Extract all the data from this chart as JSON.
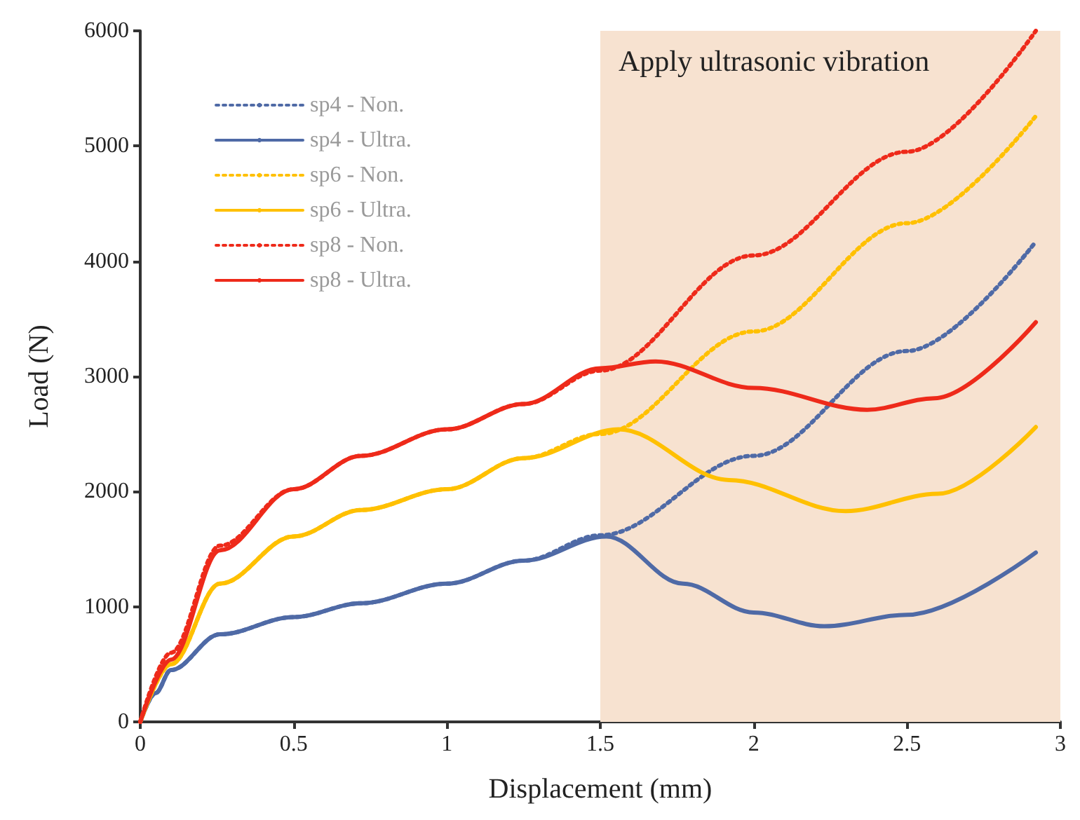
{
  "chart_data": {
    "type": "line",
    "xlabel": "Displacement (mm)",
    "ylabel": "Load (N)",
    "xlim": [
      0,
      3
    ],
    "xticks": [
      0,
      0.5,
      1,
      1.5,
      2,
      2.5,
      3
    ],
    "ylim": [
      0,
      6000
    ],
    "yticks": [
      0,
      1000,
      2000,
      3000,
      4000,
      5000,
      6000
    ],
    "grid": false,
    "legend": "top left",
    "marker": "none",
    "bands": [
      {
        "axis": "x",
        "from": 1.5,
        "to": 3,
        "label": "Apply ultrasonic vibration",
        "color": "#f7e2d0"
      }
    ],
    "series": [
      {
        "name": "sp4 - Non.",
        "color": "#4f6aa6",
        "line_style": "dotted",
        "x": [
          0,
          0.05,
          0.1,
          0.26,
          0.5,
          0.72,
          1.0,
          1.25,
          1.5,
          2.0,
          2.5,
          2.92
        ],
        "values": [
          0,
          250,
          450,
          760,
          910,
          1030,
          1200,
          1400,
          1620,
          2310,
          3220,
          4170
        ]
      },
      {
        "name": "sp4 - Ultra.",
        "color": "#4f6aa6",
        "line_style": "solid",
        "x": [
          0,
          0.05,
          0.1,
          0.26,
          0.5,
          0.72,
          1.0,
          1.25,
          1.52,
          1.77,
          2.0,
          2.23,
          2.5,
          2.92
        ],
        "values": [
          0,
          250,
          450,
          760,
          910,
          1030,
          1200,
          1400,
          1610,
          1200,
          950,
          830,
          930,
          1470
        ]
      },
      {
        "name": "sp6 - Non.",
        "color": "#ffc000",
        "line_style": "dotted",
        "x": [
          0,
          0.1,
          0.26,
          0.5,
          0.72,
          1.0,
          1.25,
          1.5,
          2.0,
          2.5,
          2.92
        ],
        "values": [
          0,
          500,
          1200,
          1610,
          1840,
          2020,
          2290,
          2500,
          3390,
          4330,
          5260
        ]
      },
      {
        "name": "sp6 - Ultra.",
        "color": "#ffc000",
        "line_style": "solid",
        "x": [
          0,
          0.1,
          0.26,
          0.5,
          0.72,
          1.0,
          1.25,
          1.56,
          1.92,
          2.3,
          2.6,
          2.92
        ],
        "values": [
          0,
          500,
          1200,
          1610,
          1840,
          2020,
          2290,
          2540,
          2100,
          1830,
          1980,
          2560
        ]
      },
      {
        "name": "sp8 - Non.",
        "color": "#ee2a1a",
        "line_style": "dotted",
        "x": [
          0,
          0.1,
          0.26,
          0.5,
          0.72,
          1.0,
          1.25,
          1.5,
          2.0,
          2.5,
          2.92
        ],
        "values": [
          0,
          600,
          1530,
          2020,
          2310,
          2540,
          2760,
          3050,
          4050,
          4950,
          6000
        ]
      },
      {
        "name": "sp8 - Ultra.",
        "color": "#ee2a1a",
        "line_style": "solid",
        "x": [
          0,
          0.1,
          0.26,
          0.5,
          0.72,
          1.0,
          1.25,
          1.5,
          1.68,
          2.0,
          2.37,
          2.59,
          2.92
        ],
        "values": [
          0,
          540,
          1490,
          2020,
          2310,
          2540,
          2760,
          3070,
          3130,
          2900,
          2710,
          2810,
          3470
        ]
      }
    ]
  }
}
